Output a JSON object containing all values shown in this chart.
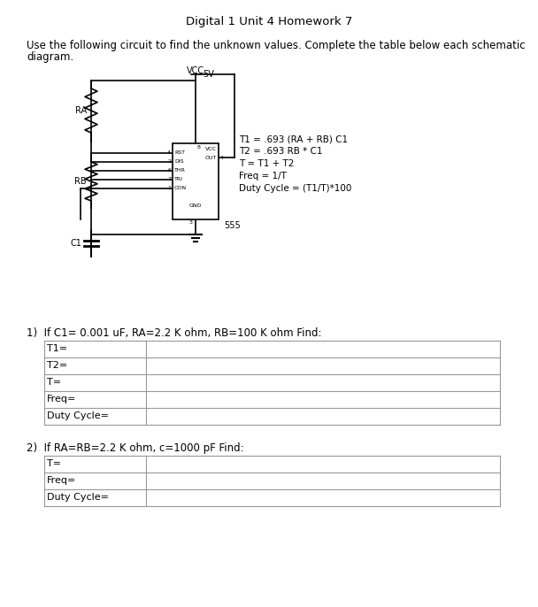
{
  "title": "Digital 1 Unit 4 Homework 7",
  "intro_line1": "Use the following circuit to find the unknown values. Complete the table below each schematic",
  "intro_line2": "diagram.",
  "formulas": [
    "T1 = .693 (RA + RB) C1",
    "T2 = .693 RB * C1",
    "T = T1 + T2",
    "Freq = 1/T",
    "Duty Cycle = (T1/T)*100"
  ],
  "q1_label": "1)  If C1= 0.001 uF, RA=2.2 K ohm, RB=100 K ohm Find:",
  "q1_rows": [
    "T1=",
    "T2=",
    "T=",
    "Freq=",
    "Duty Cycle="
  ],
  "q2_label": "2)  If RA=RB=2.2 K ohm, c=1000 pF Find:",
  "q2_rows": [
    "T=",
    "Freq=",
    "Duty Cycle="
  ],
  "bg_color": "#ffffff",
  "text_color": "#000000",
  "line_color": "#000000",
  "table_line_color": "#999999"
}
